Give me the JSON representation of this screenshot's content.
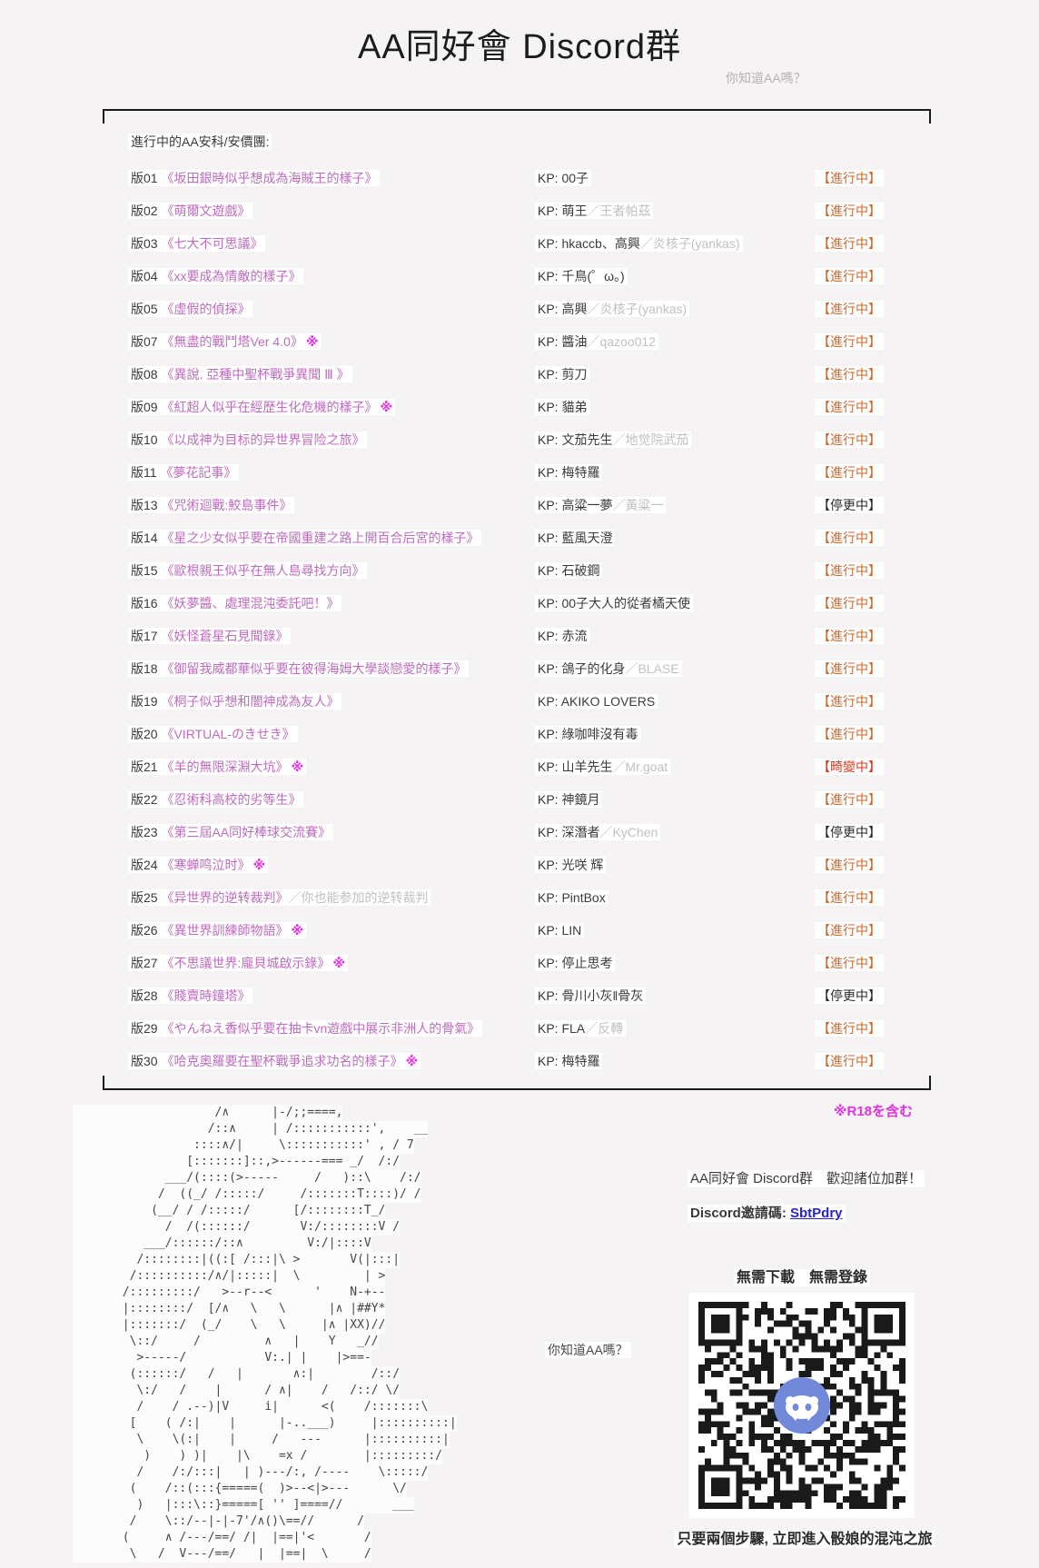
{
  "header": {
    "title": "AA同好會 Discord群",
    "tagline": "你知道AA嗎？"
  },
  "list": {
    "heading": "進行中的AA安科/安價團:",
    "kp_prefix": "KP: ",
    "r18_mark": "※",
    "footnote": "※R18を含む",
    "rows": [
      {
        "no": "版01",
        "title": "《坂田銀時似乎想成為海賊王的樣子》",
        "suffix": "",
        "r18": false,
        "kp": "00子",
        "kp_alt": "",
        "status": "【進行中】",
        "status_type": "active"
      },
      {
        "no": "版02",
        "title": "《萌爾文遊戲》",
        "suffix": "",
        "r18": false,
        "kp": "萌王",
        "kp_alt": "／王者帕茲",
        "status": "【進行中】",
        "status_type": "active"
      },
      {
        "no": "版03",
        "title": "《七大不可思議》",
        "suffix": "",
        "r18": false,
        "kp": "hkaccb、高興",
        "kp_alt": "／炎核子(yankas)",
        "status": "【進行中】",
        "status_type": "active"
      },
      {
        "no": "版04",
        "title": "《xx要成為情敵的樣子》",
        "suffix": "",
        "r18": false,
        "kp": "千鳥(゜ω。)",
        "kp_alt": "",
        "status": "【進行中】",
        "status_type": "active"
      },
      {
        "no": "版05",
        "title": "《虛假的偵探》",
        "suffix": "",
        "r18": false,
        "kp": "高興",
        "kp_alt": "／炎核子(yankas)",
        "status": "【進行中】",
        "status_type": "active"
      },
      {
        "no": "版07",
        "title": "《無盡的戰鬥塔Ver 4.0》",
        "suffix": "",
        "r18": true,
        "kp": "醬油",
        "kp_alt": "／qazoo012",
        "status": "【進行中】",
        "status_type": "active"
      },
      {
        "no": "版08",
        "title": "《異說. 亞種中聖杯戰爭異聞 Ⅲ 》",
        "suffix": "",
        "r18": false,
        "kp": "剪刀",
        "kp_alt": "",
        "status": "【進行中】",
        "status_type": "active"
      },
      {
        "no": "版09",
        "title": "《紅超人似乎在經歷生化危機的樣子》",
        "suffix": "",
        "r18": true,
        "kp": "貓弟",
        "kp_alt": "",
        "status": "【進行中】",
        "status_type": "active"
      },
      {
        "no": "版10",
        "title": "《以成神为目标的异世界冒险之旅》",
        "suffix": "",
        "r18": false,
        "kp": "文茄先生",
        "kp_alt": "／地觉院武茄",
        "status": "【進行中】",
        "status_type": "active"
      },
      {
        "no": "版11",
        "title": "《夢花記事》",
        "suffix": "",
        "r18": false,
        "kp": "梅特羅",
        "kp_alt": "",
        "status": "【進行中】",
        "status_type": "active"
      },
      {
        "no": "版13",
        "title": "《咒術迴戰:鮫島事件》",
        "suffix": "",
        "r18": false,
        "kp": "高粱一夢",
        "kp_alt": "／黃粱一",
        "status": "【停更中】",
        "status_type": "paused"
      },
      {
        "no": "版14",
        "title": "《星之少女似乎要在帝國重建之路上開百合后宮的樣子》",
        "suffix": "",
        "r18": false,
        "kp": "藍風天澄",
        "kp_alt": "",
        "status": "【進行中】",
        "status_type": "active"
      },
      {
        "no": "版15",
        "title": "《歐根親王似乎在無人島尋找方向》",
        "suffix": "",
        "r18": false,
        "kp": "石破鋼",
        "kp_alt": "",
        "status": "【進行中】",
        "status_type": "active"
      },
      {
        "no": "版16",
        "title": "《妖夢醬、處理混沌委託吧！》",
        "suffix": "",
        "r18": false,
        "kp": "00子大人的從者橘天使",
        "kp_alt": "",
        "status": "【進行中】",
        "status_type": "active"
      },
      {
        "no": "版17",
        "title": "《妖怪蒼星石見聞錄》",
        "suffix": "",
        "r18": false,
        "kp": "赤流",
        "kp_alt": "",
        "status": "【進行中】",
        "status_type": "active"
      },
      {
        "no": "版18",
        "title": "《御留我威都華似乎要在彼得海姆大學談戀愛的樣子》",
        "suffix": "",
        "r18": false,
        "kp": "鴿子的化身",
        "kp_alt": "／BLASE",
        "status": "【進行中】",
        "status_type": "active"
      },
      {
        "no": "版19",
        "title": "《桐子似乎想和闇神成為友人》",
        "suffix": "",
        "r18": false,
        "kp": "AKIKO LOVERS",
        "kp_alt": "",
        "status": "【進行中】",
        "status_type": "active"
      },
      {
        "no": "版20",
        "title": "《VIRTUAL-のきせき》",
        "suffix": "",
        "r18": false,
        "kp": "綠咖啡沒有毒",
        "kp_alt": "",
        "status": "【進行中】",
        "status_type": "active"
      },
      {
        "no": "版21",
        "title": "《羊的無限深淵大坑》",
        "suffix": "",
        "r18": true,
        "kp": "山羊先生",
        "kp_alt": "／Mr.goat",
        "status": "【畸變中】",
        "status_type": "mutated"
      },
      {
        "no": "版22",
        "title": "《忍術科高校的劣等生》",
        "suffix": "",
        "r18": false,
        "kp": "神鏡月",
        "kp_alt": "",
        "status": "【進行中】",
        "status_type": "active"
      },
      {
        "no": "版23",
        "title": "《第三屆AA同好棒球交流賽》",
        "suffix": "",
        "r18": false,
        "kp": "深潛者",
        "kp_alt": "／KyChen",
        "status": "【停更中】",
        "status_type": "paused"
      },
      {
        "no": "版24",
        "title": "《寒蝉鸣泣时》",
        "suffix": "",
        "r18": true,
        "kp": "光咲 辉",
        "kp_alt": "",
        "status": "【進行中】",
        "status_type": "active"
      },
      {
        "no": "版25",
        "title": "《异世界的逆转裁判》",
        "suffix": "／你也能参加的逆转裁判",
        "r18": false,
        "kp": "PintBox",
        "kp_alt": "",
        "status": "【進行中】",
        "status_type": "active"
      },
      {
        "no": "版26",
        "title": "《異世界訓練師物語》",
        "suffix": "",
        "r18": true,
        "kp": "LIN",
        "kp_alt": "",
        "status": "【進行中】",
        "status_type": "active"
      },
      {
        "no": "版27",
        "title": "《不思議世界:龐貝城啟示錄》",
        "suffix": "",
        "r18": true,
        "kp": "停止思考",
        "kp_alt": "",
        "status": "【進行中】",
        "status_type": "active"
      },
      {
        "no": "版28",
        "title": "《賤賣時鐘塔》",
        "suffix": "",
        "r18": false,
        "kp": "骨川小灰‖骨灰",
        "kp_alt": "",
        "status": "【停更中】",
        "status_type": "paused"
      },
      {
        "no": "版29",
        "title": "《やんねえ香似乎要在抽卡vn遊戲中展示非洲人的骨氣》",
        "suffix": "",
        "r18": false,
        "kp": "FLA",
        "kp_alt": "／反轉",
        "status": "【進行中】",
        "status_type": "active"
      },
      {
        "no": "版30",
        "title": "《哈克奧羅要在聖杯戰爭追求功名的樣子》",
        "suffix": "",
        "r18": true,
        "kp": "梅特羅",
        "kp_alt": "",
        "status": "【進行中】",
        "status_type": "active"
      }
    ]
  },
  "status_colors": {
    "active": "#ca6a2c",
    "paused": "#2b2b2b",
    "mutated": "#dd3620"
  },
  "promo": {
    "welcome": "AA同好會 Discord群　歡迎諸位加群！",
    "invite_label": "Discord邀請碼: ",
    "invite_code": "SbtPdry",
    "no_download": "無需下載　無需登錄",
    "ask": "你知道AA嗎？",
    "cta": "只要兩個步驟, 立即進入骰娘的混沌之旅"
  },
  "ascii_art": [
    "                    /∧      |-/;;====,",
    "                   /::∧     | /:::::::::::',    __",
    "                 ::::∧/|     \\:::::::::::' , / 7",
    "                [:::::::]::,>------=== _/  /:/",
    "             ___/(::::(>-----     /   )::\\    /:/",
    "            /  ((_/ /:::::/     /:::::::T::::)/ /",
    "           (__/ / /:::::/      [/::::::::T_/",
    "             /  /(::::::/       V:/::::::::V /",
    "          ___/::::::/::∧         V:/|::::V",
    "         /::::::::|((:[ /:::|\\ >       V(|:::|",
    "        /::::::::::/∧/|:::::|  \\         | >",
    "       /:::::::::/   >--r--<      '    N-+--",
    "       |::::::::/  [/∧   \\   \\      |∧ |##Y*",
    "       |:::::::/  (_/    \\   \\     |∧ |XX)//",
    "        \\::/     /         ∧   |    Y   _//",
    "         >-----/           V:.| |    |>==-",
    "        (::::::/   /   |       ∧:|        /::/",
    "         \\:/   /    |      / ∧|    /   /::/ \\/",
    "         /    / .--)|V     i|      <(    /:::::::\\",
    "        [    ( /:|    |      |-..___)     |::::::::::|",
    "         \\    \\(:|    |     /   ---      |::::::::::|",
    "          )    ) )|    |\\    =x /        |:::::::::/",
    "         /    /:/:::|   | )---/:, /----    \\:::::/",
    "        (    /::(:::{=====(  )>--<|>---      \\/",
    "         )   |:::\\::}=====[ '' ]====//       ___",
    "        /    \\::/--|-|-7'/∧()\\==//      /",
    "       (     ∧ /---/==/ /|  |==|'<       /",
    "        \\   /  V---/==/   |  |==|  \\     /"
  ]
}
